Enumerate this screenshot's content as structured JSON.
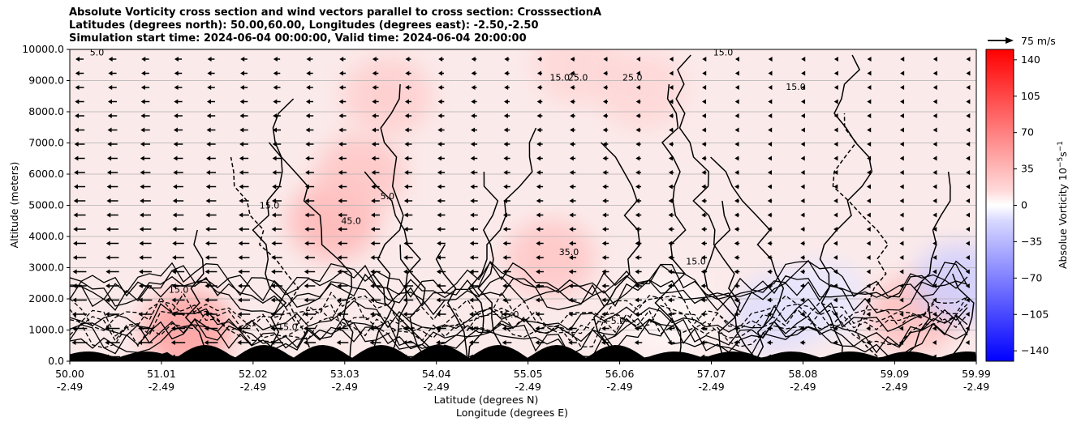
{
  "chart_data": {
    "type": "heatmap",
    "title_lines": [
      "Absolute Vorticity cross section and wind vectors parallel to cross section: CrosssectionA",
      "Latitudes (degrees north): 50.00,60.00, Longitudes (degrees east): -2.50,-2.50",
      "Simulation start time: 2024-06-04 00:00:00, Valid time: 2024-06-04 20:00:00"
    ],
    "ylabel": "Altitude (meters)",
    "xlabel_lines": [
      "Latitude (degrees N)",
      "Longitude (degrees E)"
    ],
    "ylim": [
      0,
      10000
    ],
    "y_ticks": [
      "0.0",
      "1000.0",
      "2000.0",
      "3000.0",
      "4000.0",
      "5000.0",
      "6000.0",
      "7000.0",
      "8000.0",
      "9000.0",
      "10000.0"
    ],
    "y_tick_values": [
      0,
      1000,
      2000,
      3000,
      4000,
      5000,
      6000,
      7000,
      8000,
      9000,
      10000
    ],
    "xlim": [
      50.0,
      59.99
    ],
    "x_tick_values": [
      50.0,
      51.01,
      52.02,
      53.03,
      54.04,
      55.05,
      56.06,
      57.07,
      58.08,
      59.09,
      59.99
    ],
    "x_ticks_lat": [
      "50.00",
      "51.01",
      "52.02",
      "53.03",
      "54.04",
      "55.05",
      "56.06",
      "57.07",
      "58.08",
      "59.09",
      "59.99"
    ],
    "x_ticks_lon": [
      "-2.49",
      "-2.49",
      "-2.49",
      "-2.49",
      "-2.49",
      "-2.49",
      "-2.49",
      "-2.49",
      "-2.49",
      "-2.49",
      "-2.49"
    ],
    "grid": true,
    "colorbar": {
      "label": "Absolue Vorticity 10",
      "label_exp": "−5",
      "label_unit": "s",
      "label_unit_exp": "−1",
      "ticks": [
        "140",
        "105",
        "70",
        "35",
        "0",
        "−35",
        "−70",
        "−105",
        "−140"
      ],
      "tick_values": [
        140,
        105,
        70,
        35,
        0,
        -35,
        -70,
        -105,
        -140
      ],
      "range": [
        -150,
        150
      ],
      "colors": {
        "high": "#ff0000",
        "mid": "#ffffff",
        "low": "#0000ff"
      }
    },
    "quiver_key": "75 m/s",
    "wind_direction": "left (toward lower latitude)",
    "contour_labels": [
      "5.0",
      "15.0",
      "25.0",
      "35.0",
      "45.0",
      "−5.0",
      "−15.0"
    ],
    "vorticity_regions": [
      {
        "lat": 52.9,
        "alt": 4500,
        "value": 45
      },
      {
        "lat": 53.2,
        "alt": 6000,
        "value": 35
      },
      {
        "lat": 53.5,
        "alt": 8500,
        "value": 30
      },
      {
        "lat": 55.3,
        "alt": 3300,
        "value": 35
      },
      {
        "lat": 55.6,
        "alt": 9500,
        "value": 25
      },
      {
        "lat": 56.3,
        "alt": 8700,
        "value": 25
      },
      {
        "lat": 51.3,
        "alt": 1000,
        "value": 60
      },
      {
        "lat": 57.8,
        "alt": 1500,
        "value": -20
      },
      {
        "lat": 58.3,
        "alt": 2000,
        "value": -15
      },
      {
        "lat": 59.3,
        "alt": 1500,
        "value": 40
      },
      {
        "lat": 59.8,
        "alt": 2500,
        "value": -30
      },
      {
        "lat": 56.6,
        "alt": 1500,
        "value": 5
      }
    ]
  }
}
